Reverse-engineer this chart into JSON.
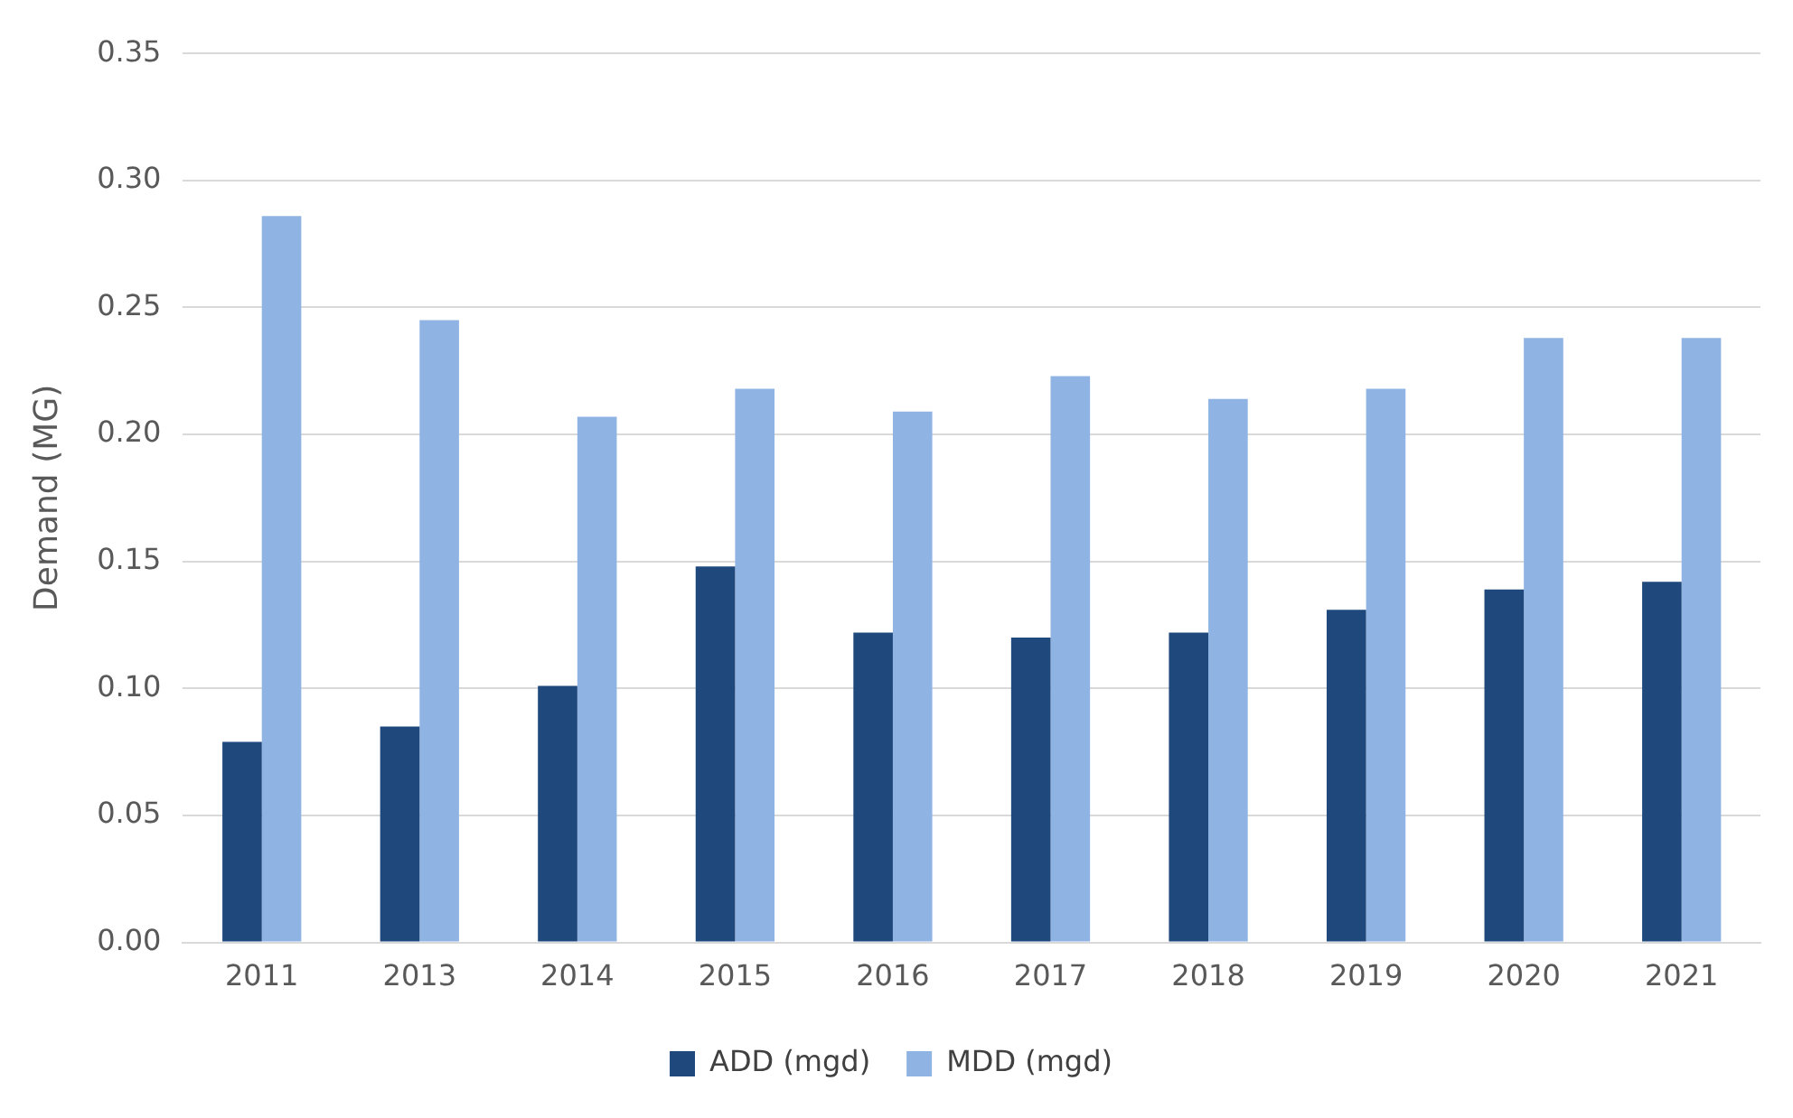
{
  "chart_data": {
    "type": "bar",
    "ylabel": "Demand (MG)",
    "categories": [
      "2011",
      "2013",
      "2014",
      "2015",
      "2016",
      "2017",
      "2018",
      "2019",
      "2020",
      "2021"
    ],
    "series": [
      {
        "name": "ADD (mgd)",
        "color": "#1f497d",
        "values": [
          0.079,
          0.085,
          0.101,
          0.148,
          0.122,
          0.12,
          0.122,
          0.131,
          0.139,
          0.142
        ]
      },
      {
        "name": "MDD (mgd)",
        "color": "#8fb4e3",
        "values": [
          0.286,
          0.245,
          0.207,
          0.218,
          0.209,
          0.223,
          0.214,
          0.218,
          0.238,
          0.238
        ]
      }
    ],
    "ylim": [
      0,
      0.35
    ],
    "yticks": [
      {
        "value": 0,
        "label": "0.00"
      },
      {
        "value": 0.05,
        "label": "0.05"
      },
      {
        "value": 0.1,
        "label": "0.10"
      },
      {
        "value": 0.15,
        "label": "0.15"
      },
      {
        "value": 0.2,
        "label": "0.20"
      },
      {
        "value": 0.25,
        "label": "0.25"
      },
      {
        "value": 0.3,
        "label": "0.30"
      },
      {
        "value": 0.35,
        "label": "0.35"
      }
    ],
    "grid": "y",
    "legend": "bottom"
  }
}
